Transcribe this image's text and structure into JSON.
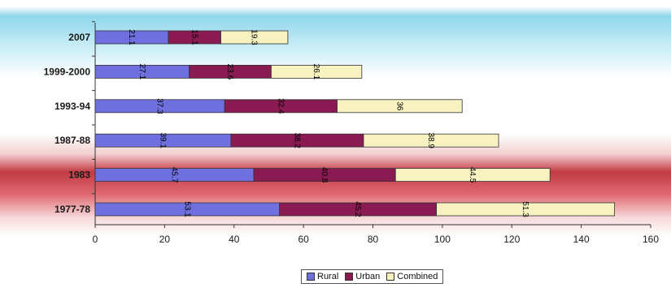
{
  "chart_data": {
    "type": "bar",
    "orientation": "horizontal",
    "stacked": true,
    "categories": [
      "2007",
      "1999-2000",
      "1993-94",
      "1987-88",
      "1983",
      "1977-78"
    ],
    "series": [
      {
        "name": "Rural",
        "values": [
          21.1,
          27.1,
          37.3,
          39.1,
          45.7,
          53.1
        ],
        "color": "#6f6fe0"
      },
      {
        "name": "Urban",
        "values": [
          15.1,
          23.6,
          32.4,
          38.2,
          40.8,
          45.2
        ],
        "color": "#8a1a52"
      },
      {
        "name": "Combined",
        "values": [
          19.3,
          26.1,
          36.0,
          38.9,
          44.5,
          51.3
        ],
        "color": "#f7f2c0"
      }
    ],
    "xlim": [
      0,
      160
    ],
    "xticks": [
      "0",
      "20",
      "40",
      "60",
      "80",
      "100",
      "120",
      "140",
      "160"
    ],
    "legend_position": "bottom",
    "grid": false
  }
}
